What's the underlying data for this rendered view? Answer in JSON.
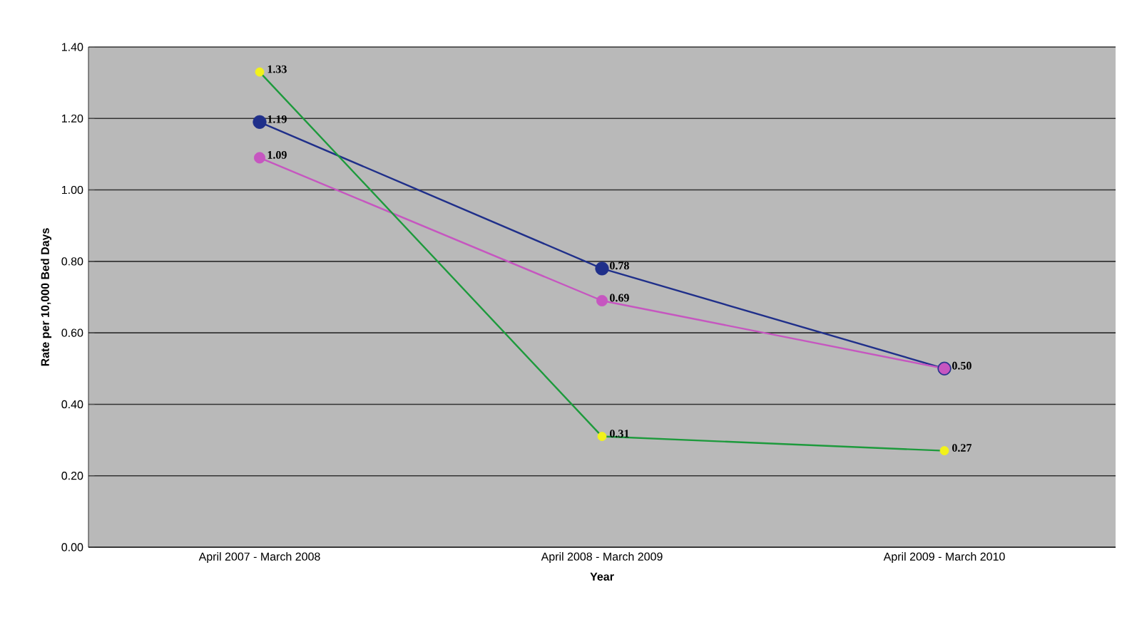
{
  "chart_data": {
    "type": "line",
    "xlabel": "Year",
    "ylabel": "Rate per 10,000 Bed Days",
    "categories": [
      "April 2007 - March 2008",
      "April 2008 - March 2009",
      "April 2009 - March 2010"
    ],
    "series": [
      {
        "color": "#1f2f8a",
        "values": [
          1.19,
          0.78,
          0.5
        ],
        "value_labels": [
          "1.19",
          "0.78",
          null
        ]
      },
      {
        "color": "#c656c0",
        "values": [
          1.09,
          0.69,
          0.5
        ],
        "value_labels": [
          "1.09",
          "0.69",
          "0.50"
        ]
      },
      {
        "color": "#1d9a3c",
        "colors": [
          "#f2f21a",
          "#f2f21a",
          "#f2f21a"
        ],
        "values": [
          1.33,
          0.31,
          0.27
        ],
        "value_labels": [
          "1.33",
          "0.31",
          "0.27"
        ]
      }
    ],
    "ylim": [
      0,
      1.4
    ],
    "yticks": [
      {
        "value": 0,
        "label": "0.00"
      },
      {
        "value": 0.2,
        "label": "0.20"
      },
      {
        "value": 0.4,
        "label": "0.40"
      },
      {
        "value": 0.6,
        "label": "0.60"
      },
      {
        "value": 0.8,
        "label": "0.80"
      },
      {
        "value": 1.0,
        "label": "1.00"
      },
      {
        "value": 1.2,
        "label": "1.20"
      },
      {
        "value": 1.4,
        "label": "1.40"
      }
    ],
    "grid": "y",
    "marker": "circle",
    "line_style": "solid",
    "legend": false
  }
}
